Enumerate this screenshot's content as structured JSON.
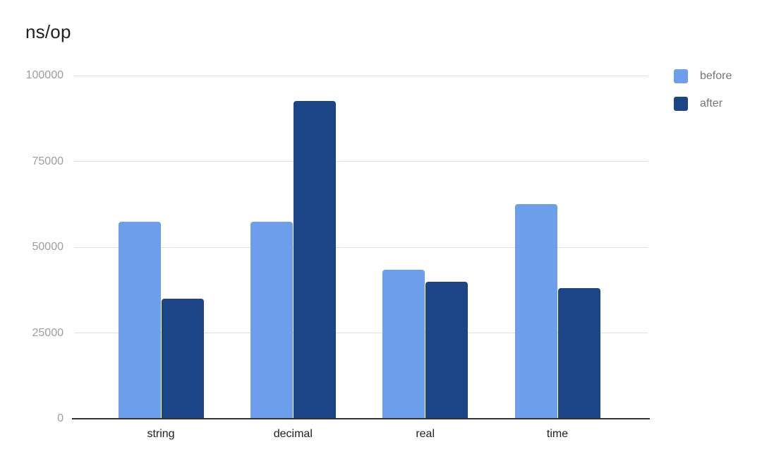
{
  "chart_data": {
    "type": "bar",
    "title": "ns/op",
    "categories": [
      "string",
      "decimal",
      "real",
      "time"
    ],
    "series": [
      {
        "name": "before",
        "color": "#6d9eeb",
        "values": [
          57500,
          57500,
          43500,
          62500
        ]
      },
      {
        "name": "after",
        "color": "#1c4587",
        "values": [
          35000,
          92500,
          40000,
          38000
        ]
      }
    ],
    "xlabel": "",
    "ylabel": "",
    "ylim": [
      0,
      100000
    ],
    "yticks": [
      0,
      25000,
      50000,
      75000,
      100000
    ],
    "ytick_labels": [
      "0",
      "25000",
      "50000",
      "75000",
      "100000"
    ],
    "grid": true,
    "legend_position": "right",
    "colors": {
      "background": "#ffffff",
      "title": "#212121",
      "grid_line": "#e0e0e0",
      "axis_line": "#333333",
      "ytick_label": "#9e9e9e",
      "xtick_label": "#212121",
      "legend_label": "#757575"
    }
  }
}
